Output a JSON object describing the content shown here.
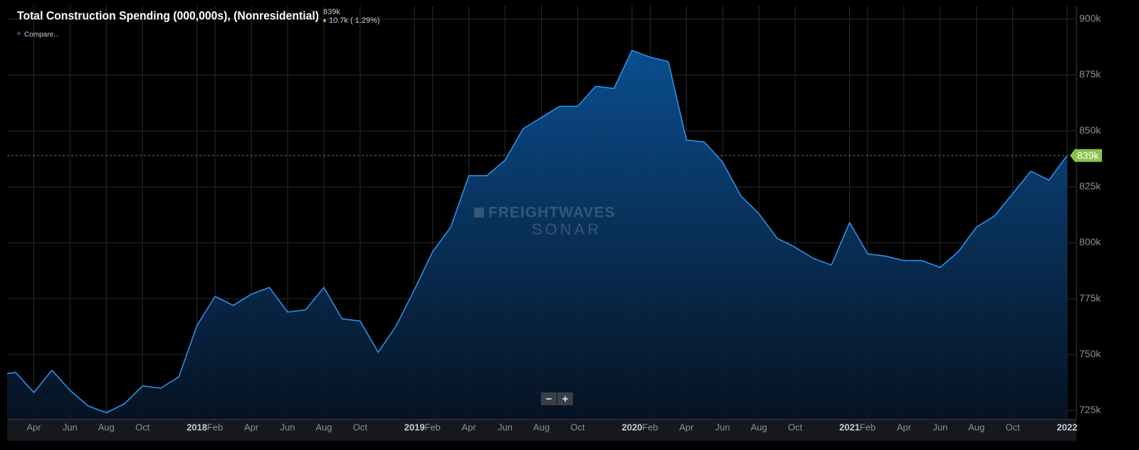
{
  "header": {
    "title": "Total Construction Spending (000,000s), (Nonresidential)",
    "current_value_label": "839k",
    "change_label": "10.7k ( 1.29%)",
    "compare": "Compare..."
  },
  "watermark": {
    "brand": "FREIGHTWAVES",
    "product": "SONAR"
  },
  "zoom": {
    "minus": "−",
    "plus": "+"
  },
  "chart_data": {
    "type": "area",
    "categories": [
      null,
      null,
      "Apr",
      null,
      "Jun",
      null,
      "Aug",
      null,
      "Oct",
      null,
      null,
      "2018",
      "Feb",
      null,
      "Apr",
      null,
      "Jun",
      null,
      "Aug",
      null,
      "Oct",
      null,
      null,
      "2019",
      "Feb",
      null,
      "Apr",
      null,
      "Jun",
      null,
      "Aug",
      null,
      "Oct",
      null,
      null,
      "2020",
      "Feb",
      null,
      "Apr",
      null,
      "Jun",
      null,
      "Aug",
      null,
      "Oct",
      null,
      null,
      "2021",
      "Feb",
      null,
      "Apr",
      null,
      "Jun",
      null,
      "Aug",
      null,
      "Oct",
      null,
      null,
      "2022"
    ],
    "series": [
      {
        "name": "Total Construction Spending (000,000s), (Nonresidential)",
        "color": "#2b90e6",
        "values": [
          741000,
          742000,
          733000,
          743000,
          734000,
          727000,
          724000,
          728000,
          736000,
          735000,
          740000,
          763000,
          776000,
          772000,
          777000,
          780000,
          769000,
          770000,
          780000,
          766000,
          765000,
          751000,
          763000,
          779000,
          796000,
          807000,
          830000,
          830000,
          837000,
          851000,
          856000,
          861000,
          861000,
          870000,
          869000,
          886000,
          883000,
          881000,
          846000,
          845000,
          836000,
          821000,
          813000,
          802000,
          798000,
          793000,
          790000,
          809000,
          795000,
          794000,
          792000,
          792000,
          789000,
          796000,
          807000,
          812000,
          822000,
          832000,
          828000,
          839000
        ]
      }
    ],
    "ylim": [
      721000,
      906000
    ],
    "yticks": [
      {
        "value": 725000,
        "label": "725k"
      },
      {
        "value": 750000,
        "label": "750k"
      },
      {
        "value": 775000,
        "label": "775k"
      },
      {
        "value": 800000,
        "label": "800k"
      },
      {
        "value": 825000,
        "label": "825k"
      },
      {
        "value": 850000,
        "label": "850k"
      },
      {
        "value": 875000,
        "label": "875k"
      },
      {
        "value": 900000,
        "label": "900k"
      }
    ],
    "grid": true,
    "last_value_label": "839k"
  }
}
